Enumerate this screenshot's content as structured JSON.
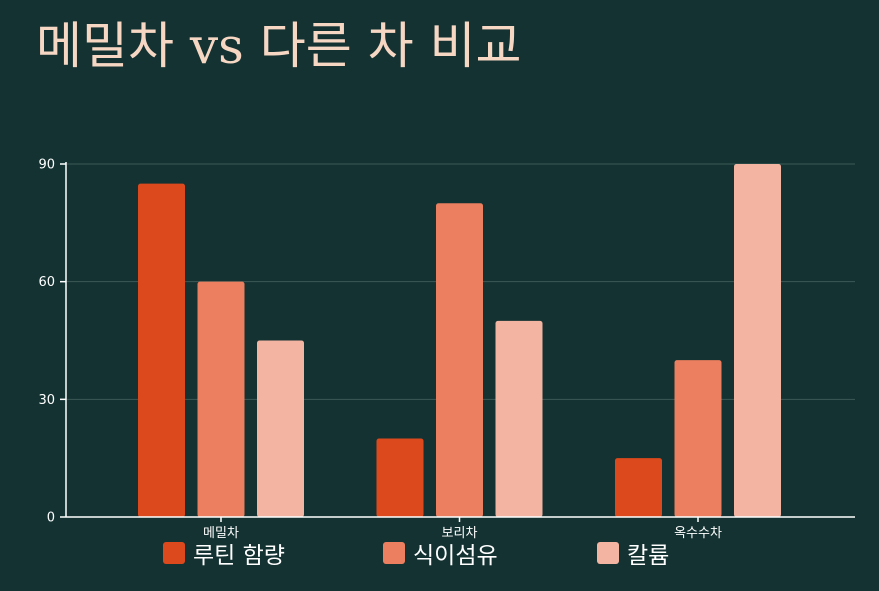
{
  "title": "메밀차 vs 다른 차 비교",
  "colors": {
    "background": "#143232",
    "title": "#f6d7c4",
    "grid": "#3d5a57",
    "axis": "#ffffff",
    "text": "#ffffff"
  },
  "chart_data": {
    "type": "bar",
    "title": "메밀차 vs 다른 차 비교",
    "xlabel": "",
    "ylabel": "",
    "categories": [
      "메밀차",
      "보리차",
      "옥수수차"
    ],
    "series": [
      {
        "name": "루틴 함량",
        "color": "#dc491d",
        "values": [
          85,
          20,
          15
        ]
      },
      {
        "name": "식이섬유",
        "color": "#ec7f5f",
        "values": [
          60,
          80,
          40
        ]
      },
      {
        "name": "칼륨",
        "color": "#f4b4a2",
        "values": [
          45,
          50,
          90
        ]
      }
    ],
    "ylim": [
      0,
      90
    ],
    "yticks": [
      "0",
      "30",
      "60",
      "90"
    ],
    "grid": true,
    "legend_position": "bottom"
  }
}
